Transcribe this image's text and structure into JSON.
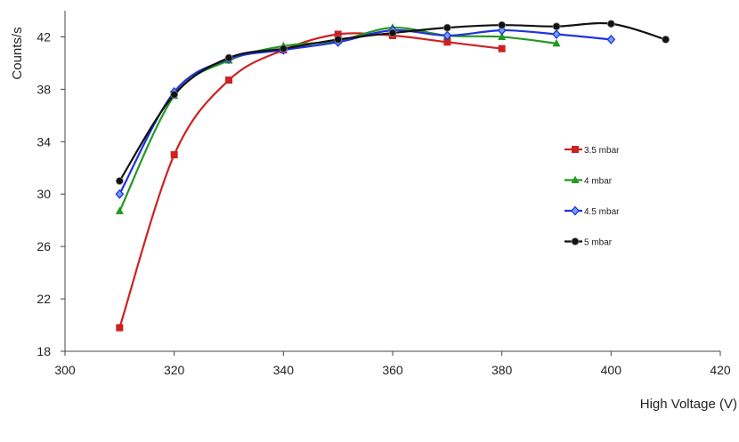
{
  "chart_data": {
    "type": "line",
    "title": "",
    "xlabel": "High Voltage (V)",
    "ylabel": "Counts/s",
    "xlim": [
      300,
      420
    ],
    "ylim": [
      18,
      44
    ],
    "x_ticks": [
      300,
      320,
      340,
      360,
      380,
      400,
      420
    ],
    "y_ticks": [
      18,
      22,
      26,
      30,
      34,
      38,
      42
    ],
    "grid": false,
    "legend_position": "right",
    "series": [
      {
        "name": "3.5 mbar",
        "color": "#cc2222",
        "marker": "square",
        "x": [
          310,
          320,
          330,
          340,
          350,
          360,
          370,
          380
        ],
        "y": [
          19.8,
          33.0,
          38.7,
          41.0,
          42.2,
          42.1,
          41.6,
          41.1
        ]
      },
      {
        "name": "4 mbar",
        "color": "#229922",
        "marker": "triangle",
        "x": [
          310,
          320,
          330,
          340,
          350,
          360,
          370,
          380,
          390
        ],
        "y": [
          28.7,
          37.5,
          40.2,
          41.3,
          41.7,
          42.7,
          42.1,
          42.0,
          41.5
        ]
      },
      {
        "name": "4.5 mbar",
        "color": "#2233dd",
        "marker": "diamond",
        "x": [
          310,
          320,
          330,
          340,
          350,
          360,
          370,
          380,
          390,
          400
        ],
        "y": [
          30.0,
          37.8,
          40.3,
          41.0,
          41.6,
          42.5,
          42.1,
          42.5,
          42.2,
          41.8
        ]
      },
      {
        "name": "5 mbar",
        "color": "#111111",
        "marker": "circle",
        "x": [
          310,
          320,
          330,
          340,
          350,
          360,
          370,
          380,
          390,
          400,
          410
        ],
        "y": [
          31.0,
          37.6,
          40.4,
          41.1,
          41.8,
          42.3,
          42.7,
          42.9,
          42.8,
          43.0,
          41.8
        ]
      }
    ]
  }
}
